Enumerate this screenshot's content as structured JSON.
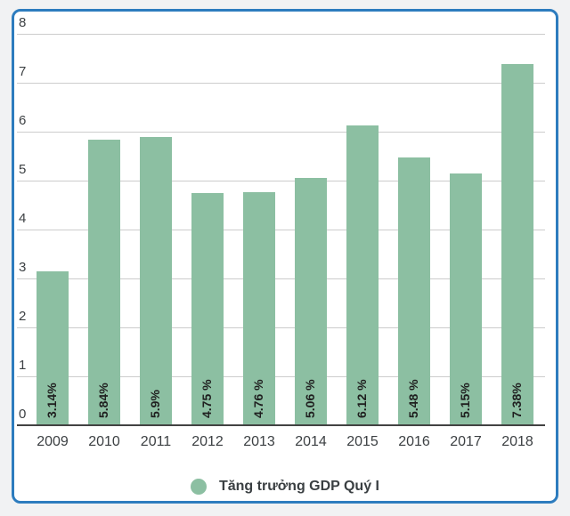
{
  "page": {
    "background": "#f1f2f3"
  },
  "card": {
    "background": "#ffffff",
    "border_color": "#2d7cbe"
  },
  "chart_data": {
    "type": "bar",
    "title": "",
    "xlabel": "",
    "ylabel": "",
    "categories": [
      "2009",
      "2010",
      "2011",
      "2012",
      "2013",
      "2014",
      "2015",
      "2016",
      "2017",
      "2018"
    ],
    "values": [
      3.14,
      5.84,
      5.9,
      4.75,
      4.76,
      5.06,
      6.12,
      5.48,
      5.15,
      7.38
    ],
    "bar_labels": [
      "3.14%",
      "5.84%",
      "5.9%",
      "4.75 %",
      "4.76 %",
      "5.06 %",
      "6.12 %",
      "5.48 %",
      "5.15%",
      "7.38%"
    ],
    "legend": "Tăng trưởng GDP Quý I",
    "legend_position": "bottom",
    "ylim": [
      0,
      8
    ],
    "yticks": [
      0,
      1,
      2,
      3,
      4,
      5,
      6,
      7,
      8
    ],
    "grid": true,
    "bar_color": "#8cbfa2",
    "gridline_color": "#cccccc",
    "axis_line_color": "#424242",
    "tick_label_color": "#3c4043",
    "bar_label_color": "#1f1f1f"
  }
}
